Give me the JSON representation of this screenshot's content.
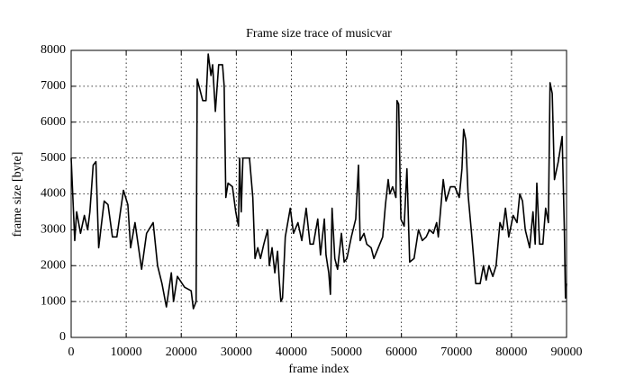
{
  "chart_data": {
    "type": "line",
    "title": "Frame size trace of musicvar",
    "x_label": "frame index",
    "y_label": "frame size [byte]",
    "x": [
      0,
      650,
      1000,
      1700,
      2400,
      3000,
      3400,
      4000,
      4500,
      5000,
      6000,
      6700,
      7500,
      8300,
      9500,
      10300,
      10800,
      11600,
      12800,
      13700,
      14900,
      15700,
      16500,
      17300,
      18200,
      18600,
      19300,
      20600,
      21800,
      22200,
      22700,
      22900,
      23900,
      24500,
      24900,
      25400,
      25700,
      26200,
      26800,
      27500,
      27800,
      28100,
      28500,
      29300,
      29900,
      30400,
      30600,
      30900,
      31200,
      32400,
      33000,
      33400,
      33900,
      34400,
      35000,
      35700,
      36000,
      36500,
      37000,
      37500,
      37800,
      38100,
      38400,
      38900,
      39800,
      40400,
      41200,
      41900,
      42700,
      43400,
      44000,
      44800,
      45300,
      46000,
      46300,
      46800,
      47100,
      47400,
      47900,
      48400,
      49100,
      49600,
      50100,
      50900,
      51700,
      52200,
      52500,
      53200,
      53700,
      54500,
      55000,
      55800,
      56600,
      57100,
      57600,
      57900,
      58400,
      59000,
      59200,
      59500,
      59900,
      60500,
      61000,
      61500,
      62300,
      63100,
      63800,
      64500,
      65100,
      65800,
      66400,
      66700,
      67200,
      67600,
      68100,
      68900,
      69700,
      70500,
      71000,
      71300,
      71700,
      72100,
      72800,
      73500,
      74300,
      74900,
      75400,
      75900,
      76600,
      77200,
      77900,
      78400,
      78900,
      79500,
      80300,
      81000,
      81500,
      82000,
      82500,
      83300,
      83900,
      84300,
      84600,
      85100,
      85700,
      86200,
      86700,
      87000,
      87400,
      87800,
      88500,
      89200,
      89600,
      89800,
      90000
    ],
    "series": [
      {
        "name": "musicvar",
        "color": "#000000",
        "values": [
          5000,
          2700,
          3500,
          2900,
          3400,
          3000,
          3500,
          4800,
          4900,
          2500,
          3800,
          3700,
          2800,
          2800,
          4100,
          3700,
          2500,
          3200,
          1900,
          2900,
          3200,
          2000,
          1500,
          850,
          1800,
          1000,
          1700,
          1400,
          1300,
          800,
          1000,
          7200,
          6600,
          6600,
          7900,
          7300,
          7600,
          6300,
          7600,
          7600,
          7000,
          3900,
          4300,
          4200,
          3500,
          3100,
          5000,
          3500,
          5000,
          5000,
          3900,
          2200,
          2500,
          2200,
          2600,
          3000,
          2000,
          2500,
          1800,
          2400,
          1600,
          1000,
          1100,
          2800,
          3600,
          2900,
          3200,
          2700,
          3600,
          2600,
          2600,
          3300,
          2300,
          3300,
          2300,
          1800,
          1200,
          3600,
          2200,
          1900,
          2900,
          2100,
          2200,
          2800,
          3300,
          4800,
          2700,
          2900,
          2600,
          2500,
          2200,
          2500,
          2800,
          3700,
          4400,
          4000,
          4200,
          3900,
          6600,
          6500,
          3300,
          3100,
          4700,
          2100,
          2200,
          3000,
          2700,
          2800,
          3000,
          2900,
          3200,
          2800,
          3700,
          4400,
          3800,
          4200,
          4200,
          3900,
          4700,
          5800,
          5500,
          4000,
          2800,
          1500,
          1500,
          2000,
          1600,
          2000,
          1700,
          2000,
          3200,
          3000,
          3600,
          2800,
          3400,
          3200,
          4000,
          3800,
          3000,
          2500,
          3500,
          2600,
          4300,
          2600,
          2600,
          3600,
          3200,
          7100,
          6800,
          4400,
          4900,
          5600,
          3000,
          1100,
          1500
        ]
      }
    ],
    "xlim": [
      0,
      90000
    ],
    "xticks": [
      0,
      10000,
      20000,
      30000,
      40000,
      50000,
      60000,
      70000,
      80000,
      90000
    ],
    "ylim": [
      0,
      8000
    ],
    "yticks": [
      0,
      1000,
      2000,
      3000,
      4000,
      5000,
      6000,
      7000,
      8000
    ],
    "grid": true
  }
}
